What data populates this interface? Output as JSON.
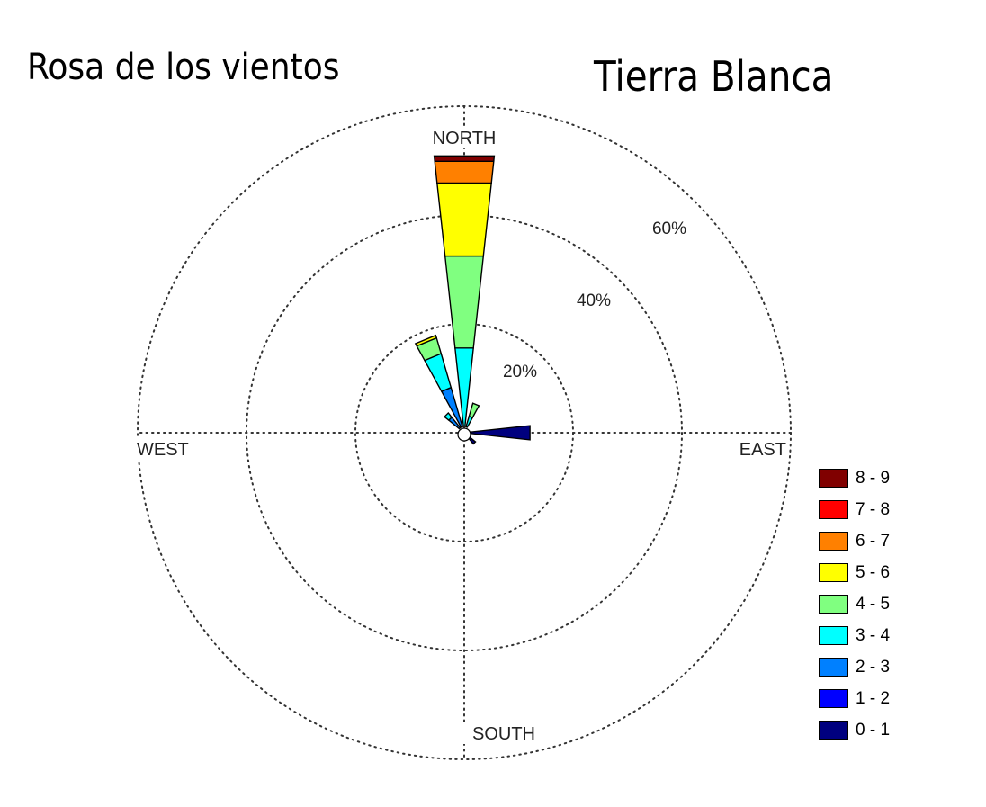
{
  "title_left": "Rosa de los vientos",
  "title_right": "Tierra Blanca",
  "chart_data": {
    "type": "wind-rose",
    "directions": [
      {
        "label": "NORTH",
        "angle": 0
      },
      {
        "label": "EAST",
        "angle": 90
      },
      {
        "label": "SOUTH",
        "angle": 180
      },
      {
        "label": "WEST",
        "angle": 270
      }
    ],
    "radial_ticks": [
      {
        "value": 20,
        "label": "20%"
      },
      {
        "value": 40,
        "label": "40%"
      },
      {
        "value": 60,
        "label": "60%"
      }
    ],
    "r_max": 60,
    "grid": true,
    "legend_placement": "bottom-right",
    "speed_bins": [
      {
        "label": "0 - 1",
        "color": "#00007f"
      },
      {
        "label": "1 - 2",
        "color": "#0000ff"
      },
      {
        "label": "2 - 3",
        "color": "#0080ff"
      },
      {
        "label": "3 - 4",
        "color": "#00ffff"
      },
      {
        "label": "4 - 5",
        "color": "#80ff80"
      },
      {
        "label": "5 - 6",
        "color": "#ffff00"
      },
      {
        "label": "6 - 7",
        "color": "#ff8000"
      },
      {
        "label": "7 - 8",
        "color": "#ff0000"
      },
      {
        "label": "8 - 9",
        "color": "#800000"
      }
    ],
    "legend_order": [
      "8 - 9",
      "7 - 8",
      "6 - 7",
      "5 - 6",
      "4 - 5",
      "3 - 4",
      "2 - 3",
      "1 - 2",
      "0 - 1"
    ],
    "sectors": [
      {
        "direction": 0,
        "cumulative": [
          0,
          0,
          0,
          14.5,
          31.5,
          45,
          49,
          49,
          50
        ]
      },
      {
        "direction": 337.5,
        "cumulative": [
          0,
          0,
          7.5,
          14,
          17,
          17.5,
          17.5,
          17.5,
          17.5
        ]
      },
      {
        "direction": 315,
        "cumulative": [
          0,
          0,
          2.5,
          3.5,
          3.5,
          3.5,
          3.5,
          3.5,
          3.5
        ]
      },
      {
        "direction": 22.5,
        "cumulative": [
          0,
          0,
          0,
          2,
          4.5,
          4.5,
          4.5,
          4.5,
          4.5
        ]
      },
      {
        "direction": 90,
        "cumulative": [
          11,
          11,
          11,
          11,
          11,
          11,
          11,
          11,
          11
        ]
      },
      {
        "direction": 135,
        "cumulative": [
          1.5,
          1.5,
          1.5,
          1.5,
          1.5,
          1.5,
          1.5,
          1.5,
          1.5
        ]
      }
    ]
  }
}
